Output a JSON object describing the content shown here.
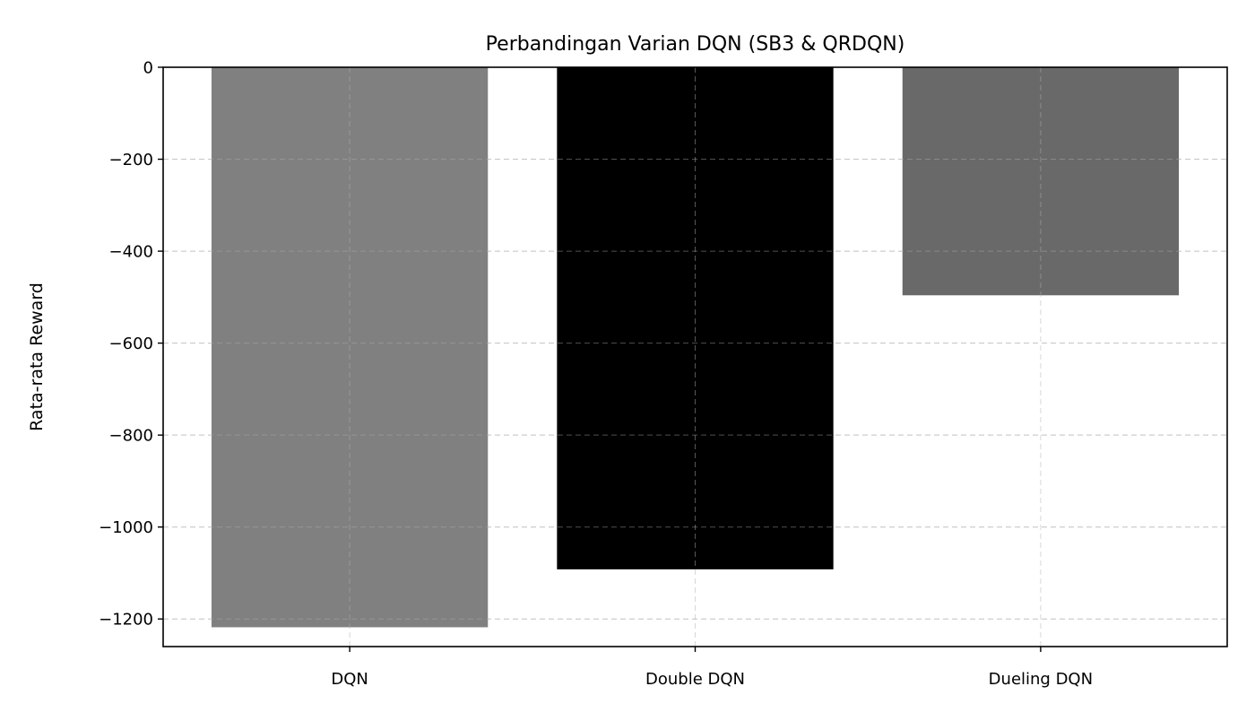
{
  "chart_data": {
    "type": "bar",
    "title": "Perbandingan Varian DQN (SB3 & QRDQN)",
    "xlabel": "",
    "ylabel": "Rata-rata Reward",
    "categories": [
      "DQN",
      "Double DQN",
      "Dueling DQN"
    ],
    "values": [
      -1218,
      -1092,
      -496
    ],
    "colors": [
      "#808080",
      "#000000",
      "#696969"
    ],
    "ylim": [
      -1260,
      0
    ],
    "yticks": [
      0,
      -200,
      -400,
      -600,
      -800,
      -1000,
      -1200
    ],
    "ytick_labels": [
      "0",
      "−200",
      "−400",
      "−600",
      "−800",
      "−1000",
      "−1200"
    ],
    "grid": true,
    "grid_style": "dashed",
    "legend": false
  }
}
